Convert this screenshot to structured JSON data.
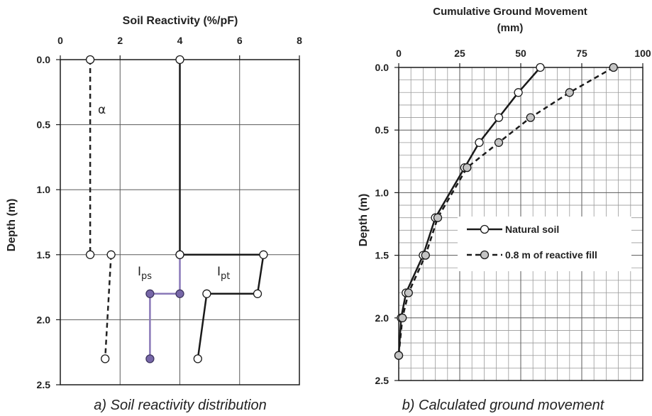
{
  "chart_data": [
    {
      "type": "line",
      "title": "Soil Reactivity (%/pF)",
      "xlabel": "",
      "ylabel": "Depth (m)",
      "xlim": [
        0,
        8
      ],
      "ylim": [
        0,
        2.5
      ],
      "y_inverted": true,
      "x_axis_position": "top",
      "x_ticks": [
        "0",
        "2",
        "4",
        "6",
        "8"
      ],
      "y_ticks": [
        "0.0",
        "0.5",
        "1.0",
        "1.5",
        "2.0",
        "2.5"
      ],
      "grid": "major",
      "caption": "a) Soil reactivity distribution",
      "annotations": {
        "alpha": "α",
        "ips_base": "I",
        "ips_sub": "ps",
        "ipt_base": "I",
        "ipt_sub": "pt"
      },
      "series": [
        {
          "key": "alpha",
          "color": "#222222",
          "dash": "dashed",
          "marker": "open",
          "points": [
            [
              1.0,
              0.0
            ],
            [
              1.0,
              1.5
            ]
          ]
        },
        {
          "key": "alpha-lower",
          "color": "#222222",
          "dash": "dashed",
          "marker": "open",
          "points": [
            [
              1.7,
              1.5
            ],
            [
              1.5,
              2.3
            ]
          ]
        },
        {
          "key": "ips-upper",
          "color": "#1a1a1a",
          "dash": "solid",
          "marker": "open",
          "points": [
            [
              4.0,
              0.0
            ],
            [
              4.0,
              1.5
            ]
          ]
        },
        {
          "key": "ips-lower",
          "color": "#8a79b8",
          "dash": "solid",
          "marker": "filled-purple",
          "points": [
            [
              4.0,
              1.5
            ],
            [
              4.0,
              1.8
            ],
            [
              3.0,
              1.8
            ],
            [
              3.0,
              2.3
            ]
          ]
        },
        {
          "key": "ipt",
          "color": "#1a1a1a",
          "dash": "solid",
          "marker": "open",
          "points": [
            [
              4.0,
              1.5
            ],
            [
              6.8,
              1.5
            ],
            [
              6.6,
              1.8
            ],
            [
              4.9,
              1.8
            ],
            [
              4.6,
              2.3
            ]
          ]
        }
      ]
    },
    {
      "type": "line",
      "title": "Cumulative Ground Movement",
      "title_line2": "(mm)",
      "xlabel": "",
      "ylabel": "Depth (m)",
      "xlim": [
        0,
        100
      ],
      "ylim": [
        0,
        2.5
      ],
      "y_inverted": true,
      "x_axis_position": "top",
      "x_ticks": [
        "0",
        "25",
        "50",
        "75",
        "100"
      ],
      "y_ticks": [
        "0.0",
        "0.5",
        "1.0",
        "1.5",
        "2.0",
        "2.5"
      ],
      "grid": "major-and-minor",
      "caption": "b) Calculated ground movement",
      "legend_position": "center-right",
      "series": [
        {
          "name": "Natural soil",
          "color": "#1a1a1a",
          "dash": "solid",
          "marker": "open",
          "points": [
            [
              58,
              0.0
            ],
            [
              49,
              0.2
            ],
            [
              41,
              0.4
            ],
            [
              33,
              0.6
            ],
            [
              27,
              0.8
            ],
            [
              15,
              1.2
            ],
            [
              10,
              1.5
            ],
            [
              3,
              1.8
            ],
            [
              1,
              2.0
            ],
            [
              0,
              2.3
            ]
          ]
        },
        {
          "name": "0.8 m of reactive fill",
          "color": "#1a1a1a",
          "dash": "dashed",
          "marker": "gray",
          "points": [
            [
              88,
              0.0
            ],
            [
              70,
              0.2
            ],
            [
              54,
              0.4
            ],
            [
              41,
              0.6
            ],
            [
              28,
              0.8
            ],
            [
              16,
              1.2
            ],
            [
              11,
              1.5
            ],
            [
              4,
              1.8
            ],
            [
              1.5,
              2.0
            ],
            [
              0,
              2.3
            ]
          ]
        }
      ]
    }
  ]
}
